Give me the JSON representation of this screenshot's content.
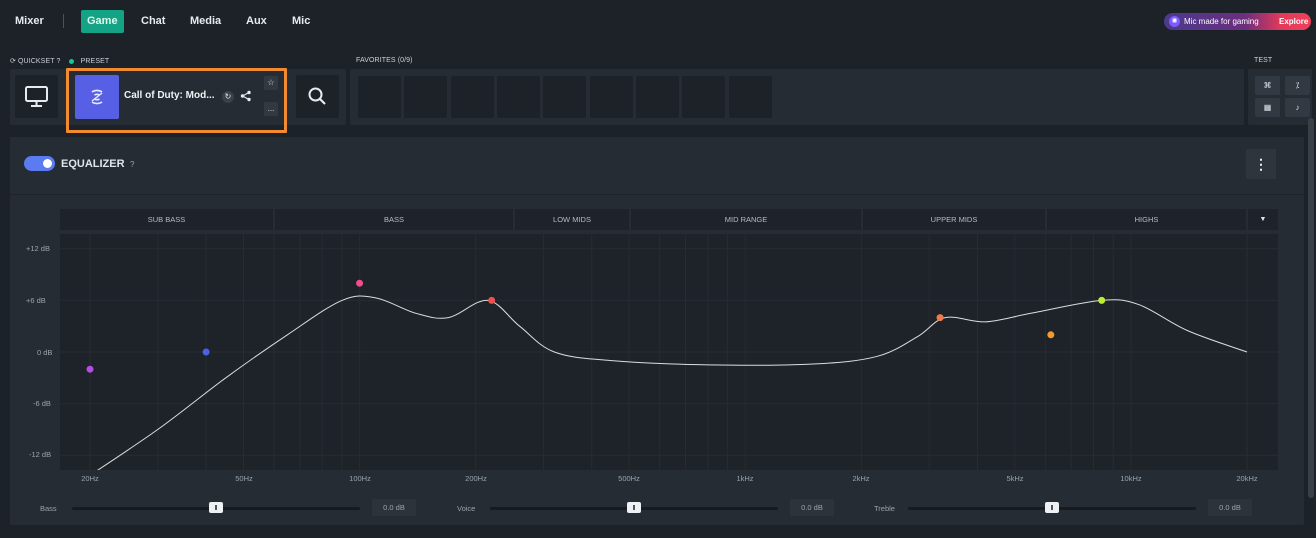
{
  "nav": {
    "mixer": "Mixer",
    "tabs": [
      "Game",
      "Chat",
      "Media",
      "Aux",
      "Mic"
    ],
    "active_tab": "Game"
  },
  "promo": {
    "text": "Mic made for gaming",
    "cta": "Explore"
  },
  "quickset": {
    "label": "QUICKSET",
    "help": "?",
    "preset_label": "PRESET"
  },
  "preset": {
    "name": "Call of Duty: Mod...",
    "more": "..."
  },
  "favorites": {
    "label": "FAVORITES (0/9)",
    "slot_count": 9
  },
  "test": {
    "label": "TEST"
  },
  "equalizer": {
    "title": "EQUALIZER",
    "help": "?",
    "enabled": true,
    "bands": [
      "SUB BASS",
      "BASS",
      "LOW MIDS",
      "MID RANGE",
      "UPPER MIDS",
      "HIGHS"
    ],
    "y_ticks": [
      "+12 dB",
      "+6 dB",
      "0 dB",
      "-6 dB",
      "-12 dB"
    ],
    "x_ticks": [
      "20Hz",
      "50Hz",
      "100Hz",
      "200Hz",
      "500Hz",
      "1kHz",
      "2kHz",
      "5kHz",
      "10kHz",
      "20kHz"
    ],
    "points": [
      {
        "hz": 20,
        "db": -2,
        "color": "#b44de8"
      },
      {
        "hz": 40,
        "db": 0,
        "color": "#4a62e8"
      },
      {
        "hz": 100,
        "db": 8,
        "color": "#ef4f8a"
      },
      {
        "hz": 220,
        "db": 6,
        "color": "#ee4f4f"
      },
      {
        "hz": 3200,
        "db": 4,
        "color": "#f27a4a"
      },
      {
        "hz": 6200,
        "db": 2,
        "color": "#f29a30"
      },
      {
        "hz": 8400,
        "db": 6,
        "color": "#b8f030"
      }
    ],
    "colors": {
      "curve": "#d9dee3",
      "accent": "#5a7cf0"
    }
  },
  "sliders": [
    {
      "label": "Bass",
      "value": "0.0 dB"
    },
    {
      "label": "Voice",
      "value": "0.0 dB"
    },
    {
      "label": "Treble",
      "value": "0.0 dB"
    }
  ]
}
